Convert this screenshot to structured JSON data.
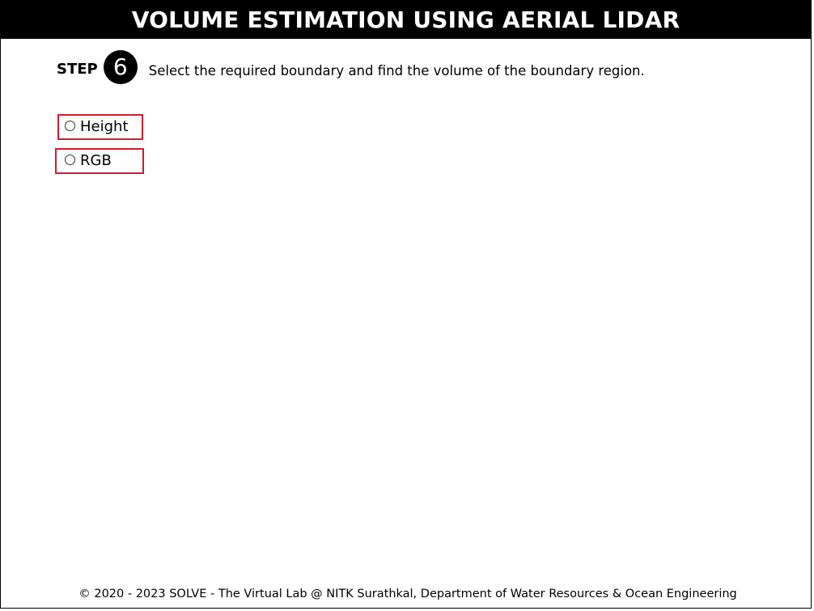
{
  "header": {
    "title": "VOLUME ESTIMATION USING AERIAL LIDAR"
  },
  "step": {
    "label": "STEP",
    "number": "6",
    "instruction": "Select the required boundary and find the volume of the boundary region."
  },
  "options": [
    {
      "label": "Height",
      "selected": false
    },
    {
      "label": "RGB",
      "selected": false
    }
  ],
  "colors": {
    "header_bg": "#000000",
    "option_border": "#d01c2b"
  },
  "footer": {
    "text": "© 2020 - 2023 SOLVE - The Virtual Lab @ NITK Surathkal, Department of Water Resources & Ocean Engineering"
  }
}
